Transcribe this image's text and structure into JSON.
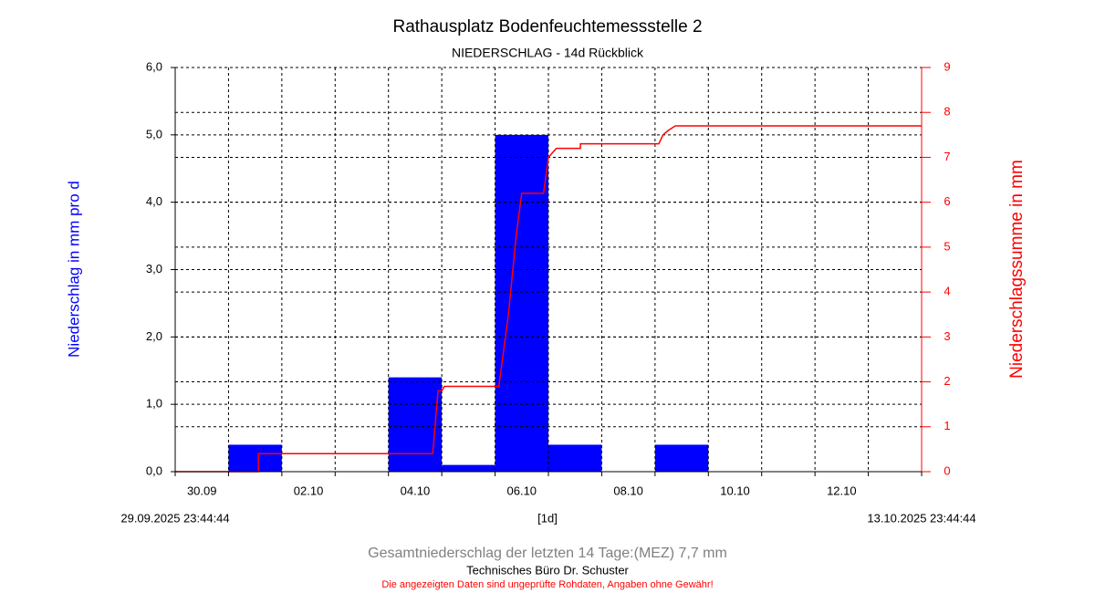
{
  "chart_data": {
    "type": "bar",
    "title": "Rathausplatz Bodenfeuchtemessstelle 2",
    "subtitle": "NIEDERSCHLAG - 14d Rückblick",
    "ylabel": "Niederschlag in mm pro d",
    "y2label": "Niederschlagssumme in mm",
    "start_label": "29.09.2025 23:44:44",
    "end_label": "13.10.2025 23:44:44",
    "interval_label": "[1d]",
    "total_text": "Gesamtniederschlag der letzten 14 Tage:(MEZ) 7,7 mm",
    "author": "Technisches Büro Dr. Schuster",
    "disclaimer": "Die angezeigten Daten sind ungeprüfte Rohdaten, Angaben ohne Gewähr!",
    "categories": [
      "30.09",
      null,
      "02.10",
      null,
      "04.10",
      null,
      "06.10",
      null,
      "08.10",
      null,
      "10.10",
      null,
      "12.10",
      null
    ],
    "values": [
      0,
      0.4,
      0,
      0,
      1.4,
      0.1,
      5.0,
      0.4,
      0,
      0.4,
      0,
      0,
      0,
      0
    ],
    "color": "#0000ff",
    "ylim": [
      0,
      6
    ],
    "yticks": [
      {
        "value": 0,
        "label": "0,0"
      },
      {
        "value": 1,
        "label": "1,0"
      },
      {
        "value": 2,
        "label": "2,0"
      },
      {
        "value": 3,
        "label": "3,0"
      },
      {
        "value": 4,
        "label": "4,0"
      },
      {
        "value": 5,
        "label": "5,0"
      },
      {
        "value": 6,
        "label": "6,0"
      }
    ],
    "y2lim": [
      0,
      9
    ],
    "y2ticks": [
      0,
      1,
      2,
      3,
      4,
      5,
      6,
      7,
      8,
      9
    ],
    "y2color": "#ff0000",
    "grid": true,
    "xlim": [
      0,
      14
    ],
    "line": {
      "axis": "y2",
      "color": "#ff0000",
      "x": [
        0,
        1.56,
        1.56,
        4.83,
        4.93,
        5.0,
        5.05,
        6.07,
        6.25,
        6.4,
        6.5,
        6.91,
        7.0,
        7.15,
        7.6,
        7.6,
        9.07,
        9.15,
        9.25,
        9.38,
        14
      ],
      "values": [
        0,
        0,
        0.4,
        0.4,
        1.8,
        1.8,
        1.9,
        1.9,
        3.5,
        5.3,
        6.2,
        6.2,
        7.0,
        7.2,
        7.2,
        7.3,
        7.3,
        7.5,
        7.6,
        7.7,
        7.7
      ]
    }
  }
}
